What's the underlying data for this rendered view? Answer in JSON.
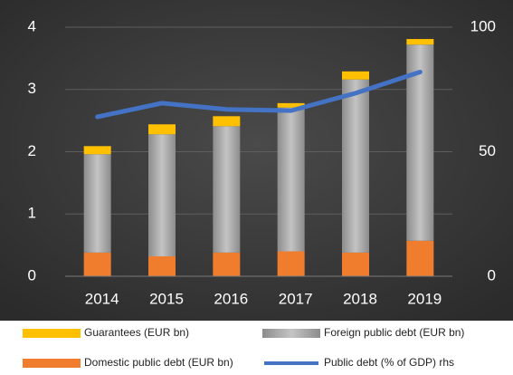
{
  "chart_data": {
    "type": "bar",
    "categories": [
      "2014",
      "2015",
      "2016",
      "2017",
      "2018",
      "2019"
    ],
    "series": [
      {
        "name": "Domestic public debt (EUR bn)",
        "color": "#f07c2e",
        "values": [
          0.38,
          0.32,
          0.38,
          0.4,
          0.38,
          0.57
        ]
      },
      {
        "name": "Foreign public debt (EUR bn)",
        "color": "#a6a6a6",
        "values": [
          1.58,
          1.96,
          2.03,
          2.31,
          2.78,
          3.15
        ]
      },
      {
        "name": "Guarantees (EUR bn)",
        "color": "#ffc000",
        "values": [
          0.13,
          0.16,
          0.16,
          0.07,
          0.13,
          0.09
        ]
      },
      {
        "name": "Public debt (% of GDP) rhs",
        "color": "#4472c4",
        "axis": "y2",
        "type": "line",
        "values": [
          64,
          69.5,
          67,
          66.5,
          73.5,
          82
        ]
      }
    ],
    "ylim": [
      0,
      4
    ],
    "yticks": [
      0,
      1,
      2,
      3,
      4
    ],
    "y2lim": [
      0,
      100
    ],
    "y2ticks": [
      0,
      50,
      100
    ],
    "grid": true,
    "legend": "bottom"
  }
}
